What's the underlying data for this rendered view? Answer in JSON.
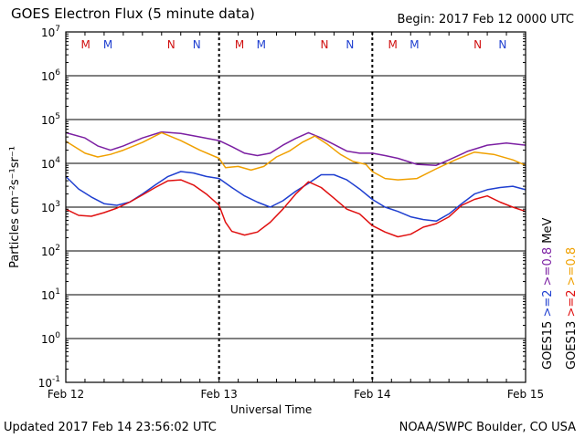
{
  "header": {
    "title": "GOES Electron Flux (5 minute data)",
    "begin": "Begin: 2017 Feb 12 0000 UTC"
  },
  "footer": {
    "updated": "Updated 2017 Feb 14 23:56:02 UTC",
    "credit": "NOAA/SWPC Boulder, CO USA"
  },
  "chart_data": {
    "type": "line",
    "title": "GOES Electron Flux (5 minute data)",
    "xlabel": "Universal Time",
    "ylabel": "Particles cm⁻²s⁻¹sr⁻¹",
    "yscale": "log",
    "ylim": [
      0.1,
      10000000
    ],
    "xlim": [
      0,
      72
    ],
    "x_unit": "hours since 2017 Feb 12 0000 UTC",
    "x_ticks": [
      {
        "x": 0,
        "label": "Feb 12"
      },
      {
        "x": 24,
        "label": "Feb 13"
      },
      {
        "x": 48,
        "label": "Feb 14"
      },
      {
        "x": 72,
        "label": "Feb 15"
      }
    ],
    "y_ticks": [
      {
        "exp": 7,
        "base": "10",
        "sup": "7"
      },
      {
        "exp": 6,
        "base": "10",
        "sup": "6"
      },
      {
        "exp": 5,
        "base": "10",
        "sup": "5"
      },
      {
        "exp": 4,
        "base": "10",
        "sup": "4"
      },
      {
        "exp": 3,
        "base": "10",
        "sup": "3"
      },
      {
        "exp": 2,
        "base": "10",
        "sup": "2"
      },
      {
        "exp": 1,
        "base": "10",
        "sup": "1"
      },
      {
        "exp": 0,
        "base": "10",
        "sup": "0"
      },
      {
        "exp": -1,
        "base": "10",
        "sup": "-1"
      }
    ],
    "grid": true,
    "reference_line": {
      "y": 1000,
      "style": "dashed"
    },
    "legend": {
      "placement": "right",
      "entries": [
        {
          "label": ">=0.8 MeV",
          "color": "#7b1fa2"
        },
        {
          "label": ">=0.8 MeV",
          "color": "#f0a000"
        },
        {
          "label": ">=2 MeV",
          "color": "#1f3fd0"
        },
        {
          "label": ">=2 MeV",
          "color": "#e01010"
        },
        {
          "label": "GOES15",
          "color": "#000000"
        },
        {
          "label": "GOES13",
          "color": "#000000"
        }
      ],
      "row1": [
        {
          "text": ">=0.8",
          "color": "#7b1fa2"
        },
        {
          "text": ">=2",
          "color": "#1f3fd0"
        },
        {
          "text": "GOES15",
          "color": "#000000"
        }
      ],
      "row2": [
        {
          "text": ">=0.8",
          "color": "#f0a000"
        },
        {
          "text": ">=2",
          "color": "#e01010"
        },
        {
          "text": "GOES13",
          "color": "#000000"
        }
      ],
      "unit_text": "MeV"
    },
    "markers": [
      {
        "x": 3.1,
        "label": "M",
        "color": "#d01010"
      },
      {
        "x": 6.6,
        "label": "M",
        "color": "#1f3fd0"
      },
      {
        "x": 16.5,
        "label": "N",
        "color": "#d01010"
      },
      {
        "x": 20.5,
        "label": "N",
        "color": "#1f3fd0"
      },
      {
        "x": 27.2,
        "label": "M",
        "color": "#d01010"
      },
      {
        "x": 30.6,
        "label": "M",
        "color": "#1f3fd0"
      },
      {
        "x": 40.5,
        "label": "N",
        "color": "#d01010"
      },
      {
        "x": 44.5,
        "label": "N",
        "color": "#1f3fd0"
      },
      {
        "x": 51.2,
        "label": "M",
        "color": "#d01010"
      },
      {
        "x": 54.6,
        "label": "M",
        "color": "#1f3fd0"
      },
      {
        "x": 64.5,
        "label": "N",
        "color": "#d01010"
      },
      {
        "x": 68.4,
        "label": "N",
        "color": "#1f3fd0"
      }
    ],
    "series": [
      {
        "name": "GOES15 >=0.8 MeV",
        "color": "#7b1fa2",
        "points": [
          [
            0,
            50000
          ],
          [
            3,
            38000
          ],
          [
            5,
            25000
          ],
          [
            7,
            20000
          ],
          [
            9,
            25000
          ],
          [
            12,
            38000
          ],
          [
            15,
            52000
          ],
          [
            18,
            48000
          ],
          [
            21,
            40000
          ],
          [
            24,
            33000
          ],
          [
            26,
            24000
          ],
          [
            28,
            17000
          ],
          [
            30,
            15000
          ],
          [
            32,
            17000
          ],
          [
            34,
            26000
          ],
          [
            36,
            37000
          ],
          [
            38,
            50000
          ],
          [
            40,
            38000
          ],
          [
            42,
            27000
          ],
          [
            44,
            19000
          ],
          [
            46,
            17000
          ],
          [
            48,
            17000
          ],
          [
            50,
            15000
          ],
          [
            52,
            13000
          ],
          [
            55,
            9500
          ],
          [
            58,
            9000
          ],
          [
            60,
            12000
          ],
          [
            63,
            19000
          ],
          [
            66,
            26000
          ],
          [
            69,
            29000
          ],
          [
            72,
            26000
          ]
        ]
      },
      {
        "name": "GOES13 >=0.8 MeV",
        "color": "#f0a000",
        "points": [
          [
            0,
            32000
          ],
          [
            3,
            17000
          ],
          [
            5,
            14000
          ],
          [
            7,
            16000
          ],
          [
            9,
            20000
          ],
          [
            12,
            30000
          ],
          [
            15,
            50000
          ],
          [
            18,
            33000
          ],
          [
            21,
            20000
          ],
          [
            24,
            13000
          ],
          [
            25,
            8000
          ],
          [
            27,
            8500
          ],
          [
            29,
            7000
          ],
          [
            31,
            8500
          ],
          [
            33,
            14000
          ],
          [
            35,
            19000
          ],
          [
            37,
            30000
          ],
          [
            39,
            42000
          ],
          [
            41,
            27000
          ],
          [
            43,
            16000
          ],
          [
            45,
            11000
          ],
          [
            47,
            9500
          ],
          [
            48,
            6500
          ],
          [
            50,
            4500
          ],
          [
            52,
            4200
          ],
          [
            55,
            4500
          ],
          [
            58,
            7500
          ],
          [
            61,
            12000
          ],
          [
            64,
            18000
          ],
          [
            67,
            16000
          ],
          [
            70,
            12000
          ],
          [
            72,
            9000
          ]
        ]
      },
      {
        "name": "GOES15 >=2 MeV",
        "color": "#1f3fd0",
        "points": [
          [
            0,
            5000
          ],
          [
            2,
            2600
          ],
          [
            4,
            1700
          ],
          [
            6,
            1200
          ],
          [
            8,
            1100
          ],
          [
            10,
            1300
          ],
          [
            12,
            2000
          ],
          [
            14,
            3200
          ],
          [
            16,
            5000
          ],
          [
            18,
            6500
          ],
          [
            20,
            6000
          ],
          [
            22,
            5000
          ],
          [
            24,
            4500
          ],
          [
            26,
            2800
          ],
          [
            28,
            1800
          ],
          [
            30,
            1300
          ],
          [
            32,
            1000
          ],
          [
            34,
            1400
          ],
          [
            36,
            2300
          ],
          [
            38,
            3500
          ],
          [
            40,
            5500
          ],
          [
            42,
            5500
          ],
          [
            44,
            4200
          ],
          [
            46,
            2600
          ],
          [
            48,
            1500
          ],
          [
            50,
            1000
          ],
          [
            52,
            800
          ],
          [
            54,
            600
          ],
          [
            56,
            520
          ],
          [
            58,
            480
          ],
          [
            60,
            700
          ],
          [
            62,
            1200
          ],
          [
            64,
            2000
          ],
          [
            66,
            2500
          ],
          [
            68,
            2800
          ],
          [
            70,
            3000
          ],
          [
            72,
            2500
          ]
        ]
      },
      {
        "name": "GOES13 >=2 MeV",
        "color": "#e01010",
        "points": [
          [
            0,
            900
          ],
          [
            2,
            650
          ],
          [
            4,
            620
          ],
          [
            6,
            750
          ],
          [
            8,
            950
          ],
          [
            10,
            1300
          ],
          [
            12,
            1900
          ],
          [
            14,
            2800
          ],
          [
            16,
            4000
          ],
          [
            18,
            4200
          ],
          [
            20,
            3200
          ],
          [
            22,
            2000
          ],
          [
            24,
            1100
          ],
          [
            25,
            450
          ],
          [
            26,
            280
          ],
          [
            28,
            230
          ],
          [
            30,
            270
          ],
          [
            32,
            450
          ],
          [
            34,
            900
          ],
          [
            36,
            2000
          ],
          [
            38,
            3800
          ],
          [
            40,
            2800
          ],
          [
            42,
            1600
          ],
          [
            44,
            900
          ],
          [
            46,
            700
          ],
          [
            48,
            380
          ],
          [
            50,
            270
          ],
          [
            52,
            210
          ],
          [
            54,
            240
          ],
          [
            56,
            350
          ],
          [
            58,
            420
          ],
          [
            60,
            600
          ],
          [
            62,
            1100
          ],
          [
            64,
            1500
          ],
          [
            66,
            1800
          ],
          [
            68,
            1300
          ],
          [
            70,
            1000
          ],
          [
            72,
            800
          ]
        ]
      }
    ]
  }
}
